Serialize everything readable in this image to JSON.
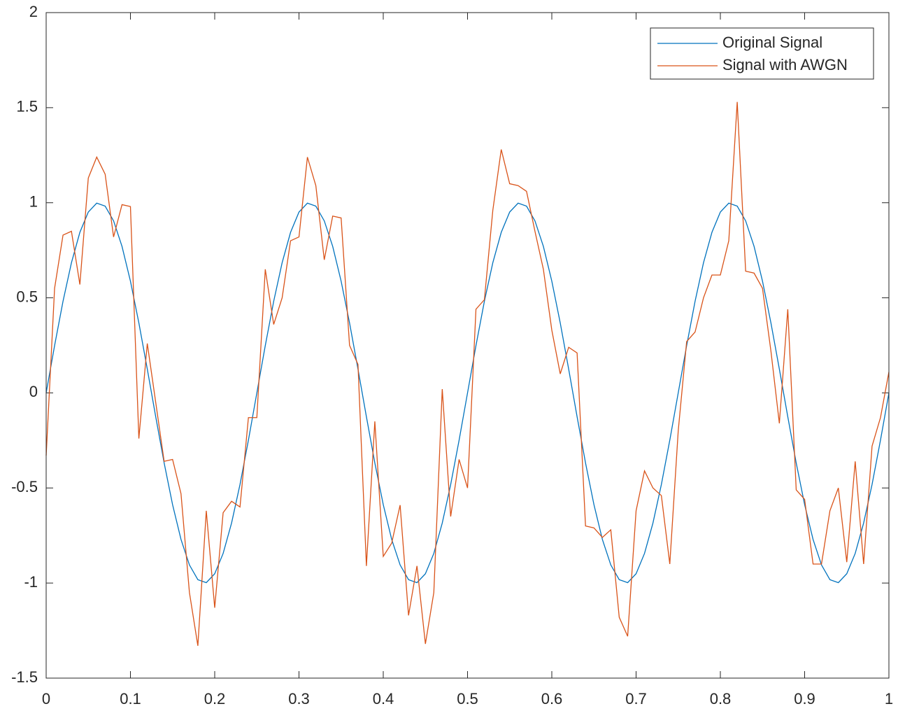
{
  "chart_data": {
    "type": "line",
    "x": [
      0,
      0.01,
      0.02,
      0.03,
      0.04,
      0.05,
      0.06,
      0.07,
      0.08,
      0.09,
      0.1,
      0.11,
      0.12,
      0.13,
      0.14,
      0.15,
      0.16,
      0.17,
      0.18,
      0.19,
      0.2,
      0.21,
      0.22,
      0.23,
      0.24,
      0.25,
      0.26,
      0.27,
      0.28,
      0.29,
      0.3,
      0.31,
      0.32,
      0.33,
      0.34,
      0.35,
      0.36,
      0.37,
      0.38,
      0.39,
      0.4,
      0.41,
      0.42,
      0.43,
      0.44,
      0.45,
      0.46,
      0.47,
      0.48,
      0.49,
      0.5,
      0.51,
      0.52,
      0.53,
      0.54,
      0.55,
      0.56,
      0.57,
      0.58,
      0.59,
      0.6,
      0.61,
      0.62,
      0.63,
      0.64,
      0.65,
      0.66,
      0.67,
      0.68,
      0.69,
      0.7,
      0.71,
      0.72,
      0.73,
      0.74,
      0.75,
      0.76,
      0.77,
      0.78,
      0.79,
      0.8,
      0.81,
      0.82,
      0.83,
      0.84,
      0.85,
      0.86,
      0.87,
      0.88,
      0.89,
      0.9,
      0.91,
      0.92,
      0.93,
      0.94,
      0.95,
      0.96,
      0.97,
      0.98,
      0.99,
      1
    ],
    "series": [
      {
        "name": "Original Signal",
        "color": "#0072bd",
        "values": [
          0,
          0.2487,
          0.4818,
          0.6845,
          0.8443,
          0.9511,
          0.998,
          0.9823,
          0.9048,
          0.7705,
          0.5878,
          0.3681,
          0.1253,
          -0.1253,
          -0.3681,
          -0.5878,
          -0.7705,
          -0.9048,
          -0.9823,
          -0.998,
          -0.9511,
          -0.8443,
          -0.6845,
          -0.4818,
          -0.2487,
          0,
          0.2487,
          0.4818,
          0.6845,
          0.8443,
          0.9511,
          0.998,
          0.9823,
          0.9048,
          0.7705,
          0.5878,
          0.3681,
          0.1253,
          -0.1253,
          -0.3681,
          -0.5878,
          -0.7705,
          -0.9048,
          -0.9823,
          -0.998,
          -0.9511,
          -0.8443,
          -0.6845,
          -0.4818,
          -0.2487,
          0,
          0.2487,
          0.4818,
          0.6845,
          0.8443,
          0.9511,
          0.998,
          0.9823,
          0.9048,
          0.7705,
          0.5878,
          0.3681,
          0.1253,
          -0.1253,
          -0.3681,
          -0.5878,
          -0.7705,
          -0.9048,
          -0.9823,
          -0.998,
          -0.9511,
          -0.8443,
          -0.6845,
          -0.4818,
          -0.2487,
          0,
          0.2487,
          0.4818,
          0.6845,
          0.8443,
          0.9511,
          0.998,
          0.9823,
          0.9048,
          0.7705,
          0.5878,
          0.3681,
          0.1253,
          -0.1253,
          -0.3681,
          -0.5878,
          -0.7705,
          -0.9048,
          -0.9823,
          -0.998,
          -0.9511,
          -0.8443,
          -0.6845,
          -0.4818,
          -0.2487,
          0
        ]
      },
      {
        "name": "Signal with AWGN",
        "color": "#d95319",
        "values": [
          -0.33,
          0.55,
          0.83,
          0.85,
          0.57,
          1.13,
          1.24,
          1.15,
          0.82,
          0.99,
          0.98,
          -0.24,
          0.26,
          -0.05,
          -0.36,
          -0.35,
          -0.53,
          -1.05,
          -1.33,
          -0.62,
          -1.13,
          -0.63,
          -0.57,
          -0.6,
          -0.13,
          -0.13,
          0.65,
          0.36,
          0.5,
          0.8,
          0.82,
          1.24,
          1.09,
          0.7,
          0.93,
          0.92,
          0.25,
          0.15,
          -0.91,
          -0.15,
          -0.86,
          -0.79,
          -0.59,
          -1.17,
          -0.91,
          -1.32,
          -1.05,
          0.02,
          -0.65,
          -0.35,
          -0.5,
          0.44,
          0.49,
          0.96,
          1.28,
          1.1,
          1.09,
          1.06,
          0.85,
          0.65,
          0.33,
          0.1,
          0.24,
          0.21,
          -0.7,
          -0.71,
          -0.76,
          -0.72,
          -1.18,
          -1.28,
          -0.62,
          -0.41,
          -0.5,
          -0.54,
          -0.9,
          -0.2,
          0.27,
          0.32,
          0.5,
          0.62,
          0.62,
          0.8,
          1.53,
          0.64,
          0.63,
          0.55,
          0.22,
          -0.16,
          0.44,
          -0.51,
          -0.56,
          -0.9,
          -0.9,
          -0.62,
          -0.5,
          -0.89,
          -0.36,
          -0.9,
          -0.28,
          -0.13,
          0.11
        ]
      }
    ],
    "xlim": [
      0,
      1
    ],
    "xticks": [
      0,
      0.1,
      0.2,
      0.3,
      0.4,
      0.5,
      0.6,
      0.7,
      0.8,
      0.9,
      1
    ],
    "ylim": [
      -1.5,
      2
    ],
    "yticks": [
      -1.5,
      -1,
      -0.5,
      0,
      0.5,
      1,
      1.5,
      2
    ],
    "grid": false,
    "legend": "top-right"
  }
}
